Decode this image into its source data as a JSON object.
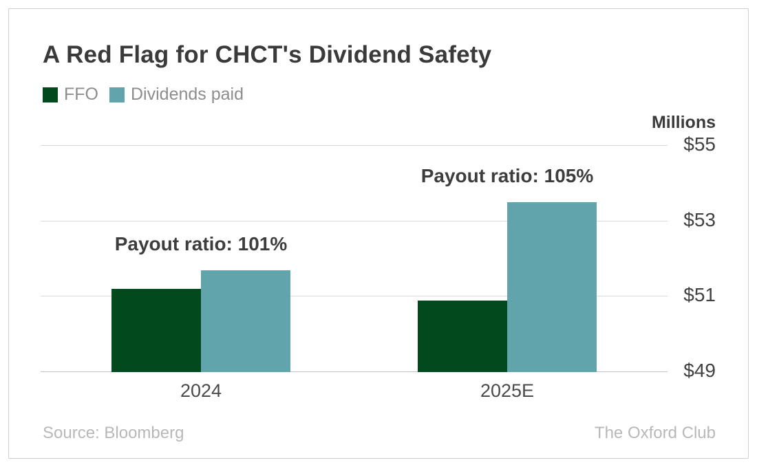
{
  "chart": {
    "title": "A Red Flag for CHCT's Dividend Safety",
    "units_label": "Millions",
    "source": "Source: Bloomberg",
    "attribution": "The Oxford Club"
  },
  "chart_data": {
    "type": "bar",
    "title": "A Red Flag for CHCT's Dividend Safety",
    "categories": [
      "2024",
      "2025E"
    ],
    "series": [
      {
        "name": "FFO",
        "color": "#02491d",
        "values": [
          51.2,
          50.9
        ]
      },
      {
        "name": "Dividends paid",
        "color": "#62a4ab",
        "values": [
          51.7,
          53.5
        ]
      }
    ],
    "annotations": [
      {
        "text": "Payout ratio: 101%",
        "category": "2024"
      },
      {
        "text": "Payout ratio: 105%",
        "category": "2025E"
      }
    ],
    "xlabel": "",
    "ylabel": "Millions",
    "ylim": [
      49,
      55
    ],
    "yticks": [
      55,
      53,
      51,
      49
    ],
    "ytick_labels": [
      "$55",
      "$53",
      "$51",
      "$49"
    ],
    "grid": true,
    "legend_position": "top-left"
  },
  "colors": {
    "ffo_green": "#02491d",
    "dividends_teal": "#62a4ab",
    "title_text": "#3a3a3a",
    "axis_text": "#414141",
    "legend_text": "#8d8d8d",
    "footer_text": "#b8b8b8",
    "gridline": "#d9d9d9",
    "card_border": "#cfcfcf"
  }
}
